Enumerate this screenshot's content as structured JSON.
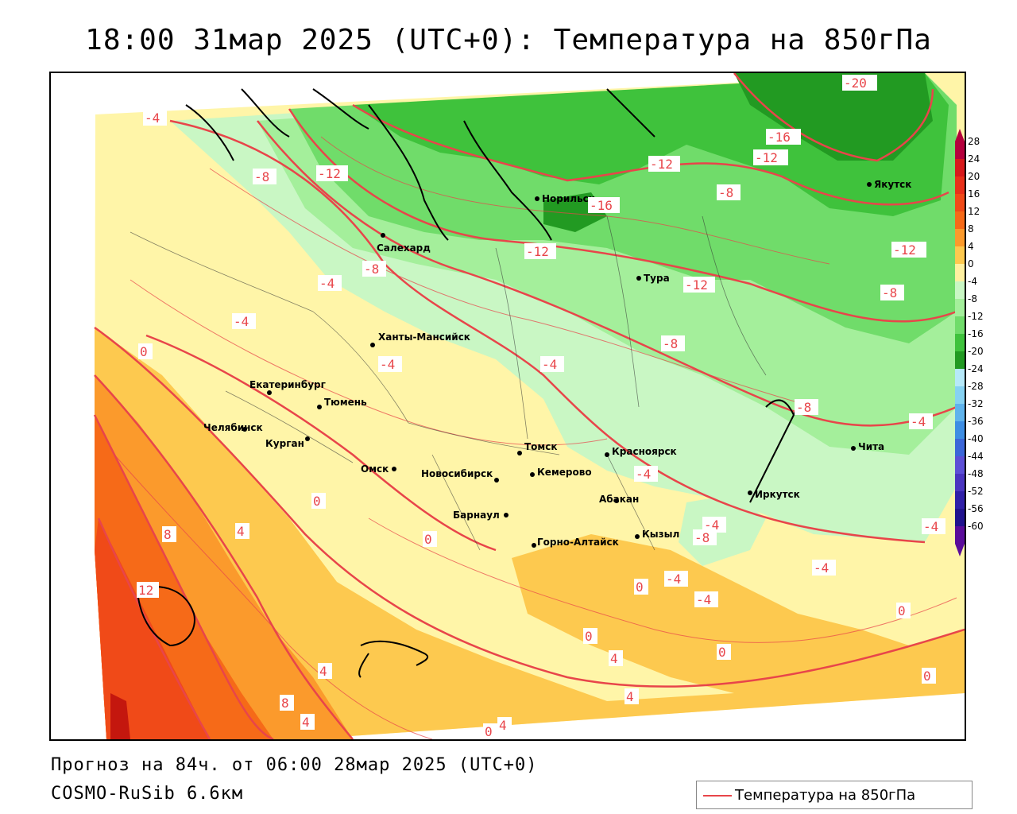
{
  "title": "18:00 31мар 2025 (UTC+0): Температура на 850гПа",
  "footer": {
    "forecast": "Прогноз на 84ч. от 06:00 28мар 2025 (UTC+0)",
    "model": "COSMO-RuSib 6.6км"
  },
  "legend": {
    "label": "Температура на 850гПа",
    "color": "#e8454a"
  },
  "colorbar": {
    "levels": [
      "28",
      "24",
      "20",
      "16",
      "12",
      "8",
      "4",
      "0",
      "-4",
      "-8",
      "-12",
      "-16",
      "-20",
      "-24",
      "-28",
      "-32",
      "-36",
      "-40",
      "-44",
      "-48",
      "-52",
      "-56",
      "-60"
    ],
    "colors": [
      "#b4003c",
      "#d7191c",
      "#e8301a",
      "#f04a18",
      "#f66a18",
      "#fb9a2c",
      "#fdc94f",
      "#fff0a0",
      "#c9f7c4",
      "#a4ef9b",
      "#70dc6a",
      "#3fc23c",
      "#229a22",
      "#b6e9f9",
      "#86d2f2",
      "#5fb3ec",
      "#3d8de3",
      "#3b66d8",
      "#5c4fd6",
      "#4a35c0",
      "#3020a8",
      "#21138e",
      "#5a0c9a"
    ]
  },
  "cities": [
    {
      "name": "Норильск"
    },
    {
      "name": "Якутск"
    },
    {
      "name": "Салехард"
    },
    {
      "name": "Тура"
    },
    {
      "name": "Ханты-Мансийск"
    },
    {
      "name": "Екатеринбург"
    },
    {
      "name": "Тюмень"
    },
    {
      "name": "Челябинск"
    },
    {
      "name": "Курган"
    },
    {
      "name": "Омск"
    },
    {
      "name": "Новосибирск"
    },
    {
      "name": "Томск"
    },
    {
      "name": "Кемерово"
    },
    {
      "name": "Красноярск"
    },
    {
      "name": "Барнаул"
    },
    {
      "name": "Абакан"
    },
    {
      "name": "Иркутск"
    },
    {
      "name": "Чита"
    },
    {
      "name": "Кызыл"
    },
    {
      "name": "Горно-Алтайск"
    }
  ],
  "isolines": [
    "-20",
    "-16",
    "-12",
    "-12",
    "-16",
    "-12",
    "-8",
    "-12",
    "-12",
    "-8",
    "-4",
    "-8",
    "-12",
    "-4",
    "-8",
    "-4",
    "0",
    "-4",
    "-4",
    "-8",
    "-8",
    "-4",
    "-4",
    "0",
    "4",
    "8",
    "12",
    "0",
    "-4",
    "-4",
    "-8",
    "-4",
    "-4",
    "0",
    "0",
    "4",
    "8",
    "4",
    "0",
    "4",
    "4",
    "0",
    "4",
    "-4",
    "-4",
    "0",
    "0"
  ]
}
